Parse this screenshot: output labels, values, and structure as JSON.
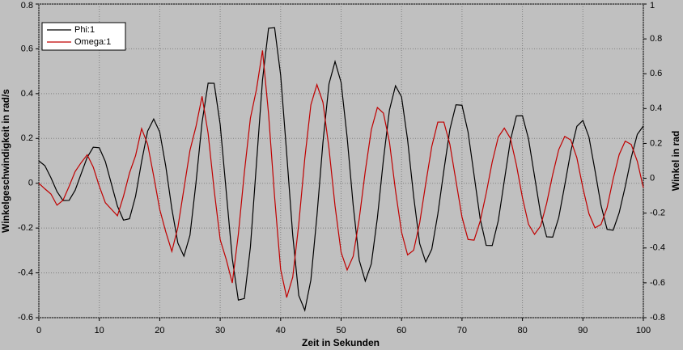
{
  "chart_data": {
    "type": "line",
    "xlabel": "Zeit in Sekunden",
    "ylabel": "Winkelgeschwindigkeit in rad/s",
    "y2label": "Winkel in rad",
    "x": [
      0,
      1,
      2,
      3,
      4,
      5,
      6,
      7,
      8,
      9,
      10,
      11,
      12,
      13,
      14,
      15,
      16,
      17,
      18,
      19,
      20,
      21,
      22,
      23,
      24,
      25,
      26,
      27,
      28,
      29,
      30,
      31,
      32,
      33,
      34,
      35,
      36,
      37,
      38,
      39,
      40,
      41,
      42,
      43,
      44,
      45,
      46,
      47,
      48,
      49,
      50,
      51,
      52,
      53,
      54,
      55,
      56,
      57,
      58,
      59,
      60,
      61,
      62,
      63,
      64,
      65,
      66,
      67,
      68,
      69,
      70,
      71,
      72,
      73,
      74,
      75,
      76,
      77,
      78,
      79,
      80,
      81,
      82,
      83,
      84,
      85,
      86,
      87,
      88,
      89,
      90,
      91,
      92,
      93,
      94,
      95,
      96,
      97,
      98,
      99,
      100
    ],
    "series": [
      {
        "name": "Phi:1",
        "color": "#000000",
        "axis": "y2",
        "values": [
          0.1,
          0.072,
          0.003,
          -0.076,
          -0.128,
          -0.127,
          -0.069,
          0.026,
          0.12,
          0.178,
          0.175,
          0.096,
          -0.032,
          -0.16,
          -0.24,
          -0.232,
          -0.103,
          0.096,
          0.271,
          0.34,
          0.265,
          0.068,
          -0.175,
          -0.372,
          -0.447,
          -0.327,
          -0.024,
          0.321,
          0.546,
          0.545,
          0.308,
          -0.077,
          -0.461,
          -0.699,
          -0.69,
          -0.394,
          0.085,
          0.564,
          0.861,
          0.864,
          0.592,
          0.142,
          -0.327,
          -0.673,
          -0.758,
          -0.584,
          -0.217,
          0.207,
          0.542,
          0.67,
          0.55,
          0.235,
          -0.155,
          -0.47,
          -0.59,
          -0.491,
          -0.228,
          0.106,
          0.392,
          0.531,
          0.467,
          0.221,
          -0.104,
          -0.375,
          -0.48,
          -0.407,
          -0.206,
          0.045,
          0.281,
          0.422,
          0.419,
          0.266,
          0.018,
          -0.231,
          -0.385,
          -0.386,
          -0.244,
          -0.014,
          0.216,
          0.358,
          0.359,
          0.227,
          0.012,
          -0.203,
          -0.336,
          -0.338,
          -0.226,
          -0.039,
          0.155,
          0.298,
          0.332,
          0.237,
          0.045,
          -0.156,
          -0.293,
          -0.298,
          -0.198,
          -0.048,
          0.119,
          0.252,
          0.3
        ]
      },
      {
        "name": "Omega:1",
        "color": "#c00000",
        "axis": "y",
        "values": [
          0,
          -0.025,
          -0.048,
          -0.098,
          -0.076,
          -0.014,
          0.052,
          0.092,
          0.127,
          0.072,
          -0.013,
          -0.087,
          -0.116,
          -0.145,
          -0.058,
          0.046,
          0.123,
          0.244,
          0.174,
          0.032,
          -0.117,
          -0.217,
          -0.304,
          -0.197,
          -0.025,
          0.147,
          0.254,
          0.388,
          0.223,
          -0.03,
          -0.252,
          -0.34,
          -0.445,
          -0.228,
          0.049,
          0.291,
          0.419,
          0.593,
          0.31,
          -0.061,
          -0.385,
          -0.51,
          -0.419,
          -0.182,
          0.112,
          0.35,
          0.44,
          0.361,
          0.155,
          -0.102,
          -0.308,
          -0.387,
          -0.326,
          -0.159,
          0.054,
          0.239,
          0.338,
          0.313,
          0.184,
          -0.033,
          -0.218,
          -0.32,
          -0.299,
          -0.177,
          -0.002,
          0.164,
          0.273,
          0.273,
          0.173,
          0.011,
          -0.151,
          -0.251,
          -0.254,
          -0.17,
          -0.045,
          0.095,
          0.206,
          0.246,
          0.201,
          0.082,
          -0.064,
          -0.183,
          -0.228,
          -0.191,
          -0.09,
          0.038,
          0.15,
          0.209,
          0.193,
          0.114,
          -0.021,
          -0.136,
          -0.199,
          -0.184,
          -0.109,
          0.019,
          0.128,
          0.188,
          0.173,
          0.098,
          -0.02
        ]
      }
    ],
    "xlim": [
      0,
      100
    ],
    "xticks": [
      0,
      10,
      20,
      30,
      40,
      50,
      60,
      70,
      80,
      90,
      100
    ],
    "ylim": [
      -0.6,
      0.8
    ],
    "yticks": [
      -0.6,
      -0.4,
      -0.2,
      0,
      0.2,
      0.4,
      0.6,
      0.8
    ],
    "y2lim": [
      -0.8,
      1
    ],
    "y2ticks": [
      -0.8,
      -0.6,
      -0.4,
      -0.2,
      0,
      0.2,
      0.4,
      0.6,
      0.8,
      1
    ],
    "grid": true,
    "legend": "upper left"
  }
}
